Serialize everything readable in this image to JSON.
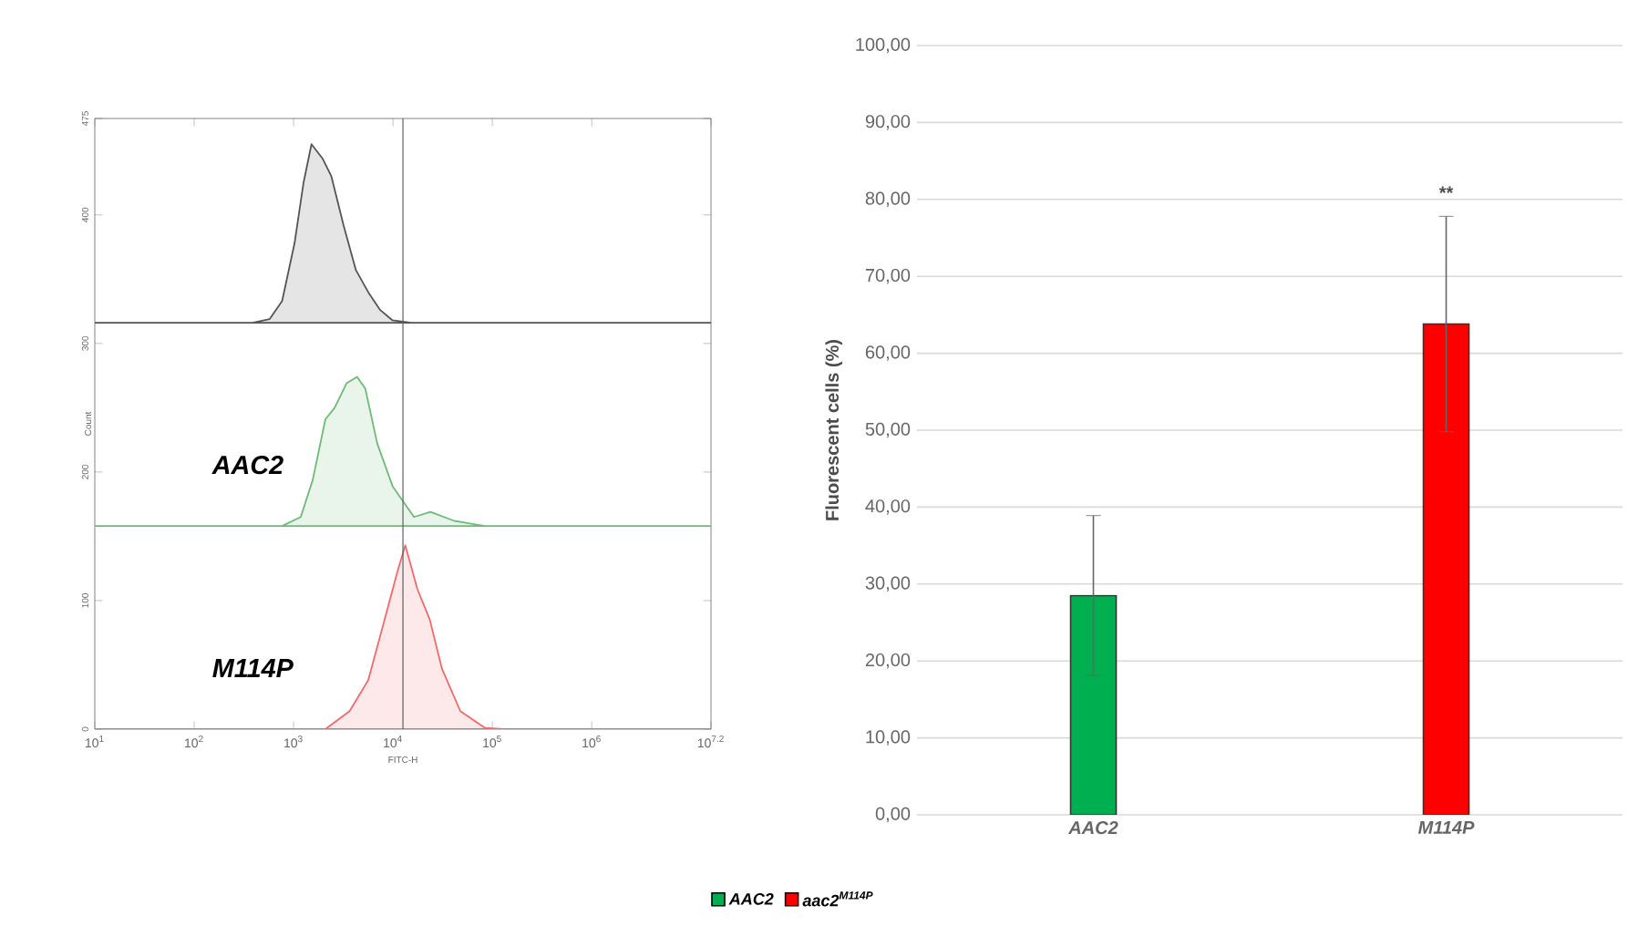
{
  "chart_data": [
    {
      "type": "area",
      "xlabel": "FITC-H",
      "ylabel": "Count",
      "log": "x",
      "xlim": [
        10,
        15848932
      ],
      "ylim": [
        0,
        475
      ],
      "xticks": [
        {
          "value": 10,
          "label": "10$^{1}$"
        },
        {
          "value": 100,
          "label": "10$^{2}$"
        },
        {
          "value": 1000,
          "label": "10$^{3}$"
        },
        {
          "value": 10000,
          "label": "10$^{4}$"
        },
        {
          "value": 100000,
          "label": "10$^{5}$"
        },
        {
          "value": 1000000,
          "label": "10$^{6}$"
        },
        {
          "value": 15848932,
          "label": "10$^{7.2}$"
        }
      ],
      "yticks": [
        0,
        100,
        200,
        300,
        400,
        475
      ],
      "ref_lines": [
        {
          "axis": "x",
          "value": 12600,
          "color": "#606060"
        }
      ],
      "series": [
        {
          "color": "#555555",
          "x": [
            10,
            377,
            575,
            767,
            1023,
            1259,
            1514,
            1950,
            2400,
            3180,
            4240,
            5630,
            7440,
            9900,
            15200,
            15848932
          ],
          "values": [
            316,
            316,
            319,
            333,
            378,
            425,
            455,
            444,
            430,
            392,
            357,
            340,
            326,
            318,
            316,
            316
          ]
        },
        {
          "name": "AAC2",
          "color": "#6dbb75",
          "x": [
            10,
            767,
            1180,
            1560,
            2090,
            2590,
            3410,
            4350,
            5260,
            6960,
            9900,
            16300,
            23800,
            41400,
            84000,
            15848932
          ],
          "values": [
            158,
            158,
            165,
            194,
            241,
            250,
            269,
            274,
            265,
            222,
            189,
            165,
            169,
            162,
            158,
            158
          ]
        },
        {
          "name": "M114P",
          "color": "#f06a6a",
          "x": [
            10,
            2090,
            3660,
            5630,
            7900,
            11130,
            13300,
            17600,
            23500,
            31100,
            47600,
            84000,
            129000,
            15848932
          ],
          "values": [
            0,
            0,
            14,
            38,
            80,
            123,
            143,
            109,
            85,
            47,
            14,
            1,
            0,
            0
          ]
        }
      ]
    },
    {
      "type": "bar",
      "ylabel": "Fluorescent cells (%)",
      "categories": [
        "AAC2",
        "M114P"
      ],
      "ylim": [
        0,
        100
      ],
      "yticks": [
        {
          "value": 0,
          "label": "0,00"
        },
        {
          "value": 10,
          "label": "10,00"
        },
        {
          "value": 20,
          "label": "20,00"
        },
        {
          "value": 30,
          "label": "30,00"
        },
        {
          "value": 40,
          "label": "40,00"
        },
        {
          "value": 50,
          "label": "50,00"
        },
        {
          "value": 60,
          "label": "60,00"
        },
        {
          "value": 70,
          "label": "70,00"
        },
        {
          "value": 80,
          "label": "80,00"
        },
        {
          "value": 90,
          "label": "90,00"
        },
        {
          "value": 100,
          "label": "100,00"
        }
      ],
      "grid": "y",
      "legend": "bottom",
      "annotations": [
        "**"
      ],
      "series": [
        {
          "name": "AAC2",
          "color": "#00b050",
          "values": [
            28.5,
            null
          ],
          "errors": [
            10.4,
            null
          ]
        },
        {
          "name": "aac2$^{M114P}$",
          "color": "#ff0000",
          "values": [
            null,
            63.8
          ],
          "errors": [
            null,
            14
          ]
        }
      ]
    }
  ]
}
